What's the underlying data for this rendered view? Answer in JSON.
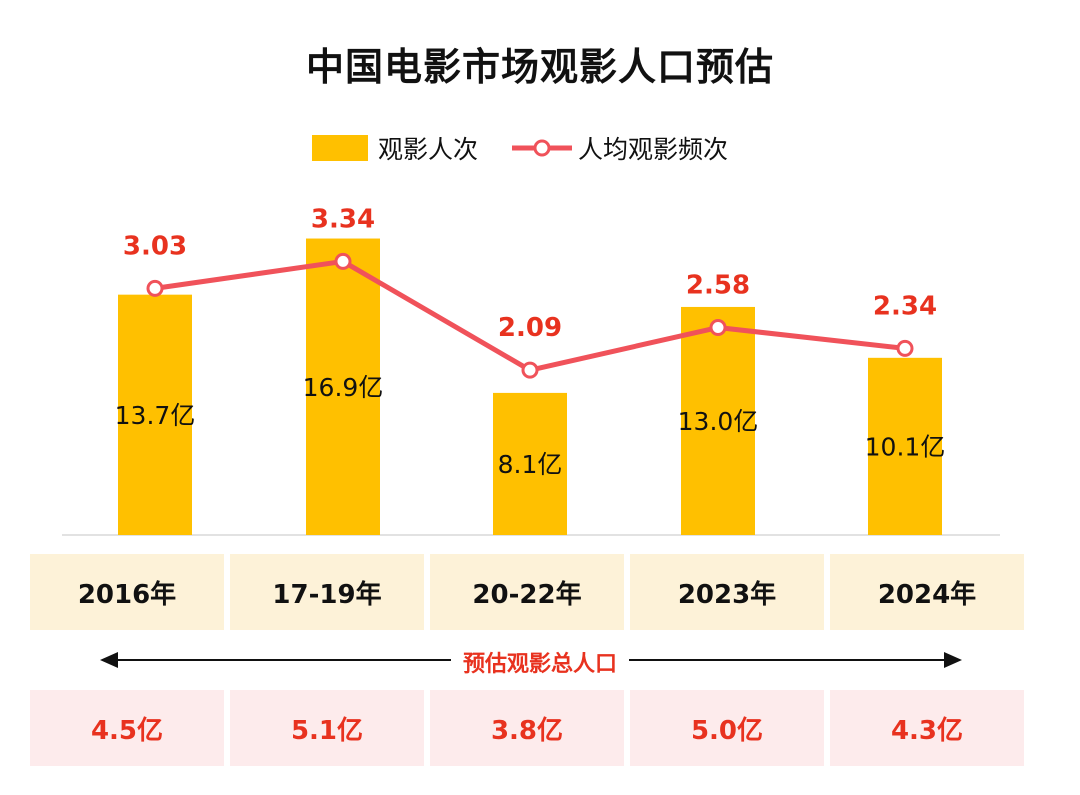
{
  "title": "中国电影市场观影人口预估",
  "legend": {
    "bar": "观影人次",
    "line": "人均观影频次"
  },
  "colors": {
    "bar": "#FFC000",
    "line": "#F0525A",
    "line_label": "#E8321F",
    "year_bg": "#FDF2D8",
    "pop_bg": "#FDEBEC",
    "pop_text": "#E8321F"
  },
  "chart_data": {
    "type": "bar",
    "title": "中国电影市场观影人口预估",
    "categories": [
      "2016年",
      "17-19年",
      "20-22年",
      "2023年",
      "2024年"
    ],
    "series": [
      {
        "name": "观影人次",
        "type": "bar",
        "unit": "亿",
        "values": [
          13.7,
          16.9,
          8.1,
          13.0,
          10.1
        ],
        "labels": [
          "13.7亿",
          "16.9亿",
          "8.1亿",
          "13.0亿",
          "10.1亿"
        ]
      },
      {
        "name": "人均观影频次",
        "type": "line",
        "values": [
          3.03,
          3.34,
          2.09,
          2.58,
          2.34
        ],
        "labels": [
          "3.03",
          "3.34",
          "2.09",
          "2.58",
          "2.34"
        ]
      }
    ],
    "xlabel": "",
    "ylabel": "",
    "ylim": [
      0,
      17.5
    ]
  },
  "arrow_label": "预估观影总人口",
  "population": [
    "4.5亿",
    "5.1亿",
    "3.8亿",
    "5.0亿",
    "4.3亿"
  ]
}
